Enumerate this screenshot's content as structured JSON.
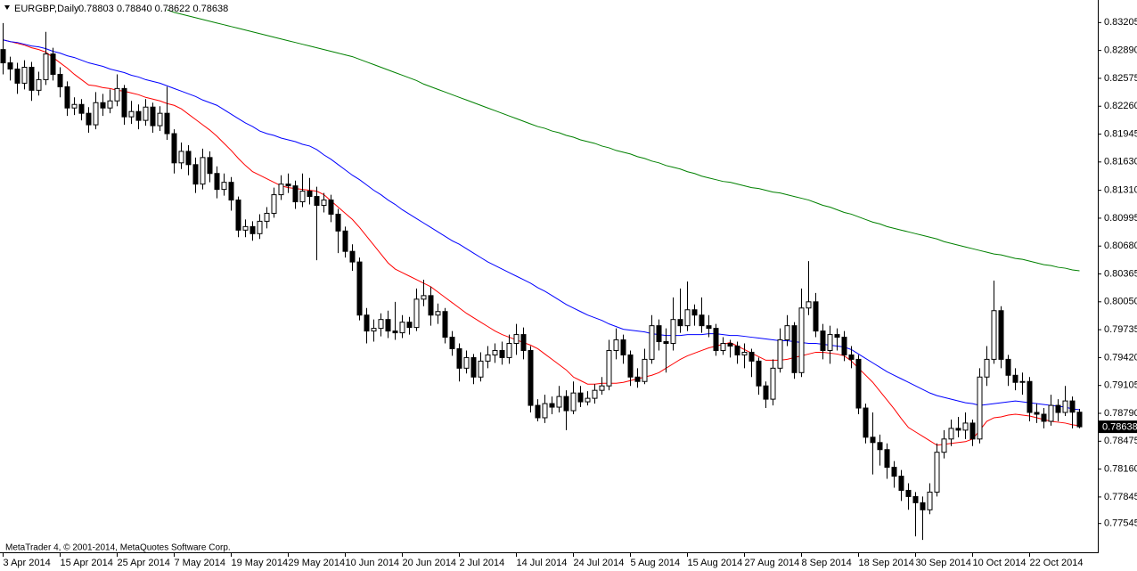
{
  "chart_data": {
    "type": "candlestick",
    "title": "EURGBP,Daily",
    "subtitle": "0.78803 0.78840 0.78622 0.78638",
    "footer": "MetaTrader 4, © 2001-2014, MetaQuotes Software Corp.",
    "categories": [
      "3 Apr 2014",
      null,
      null,
      null,
      null,
      null,
      null,
      null,
      "15 Apr 2014",
      null,
      null,
      null,
      null,
      null,
      null,
      null,
      "25 Apr 2014",
      null,
      null,
      null,
      null,
      null,
      null,
      null,
      "7 May 2014",
      null,
      null,
      null,
      null,
      null,
      null,
      null,
      "19 May 2014",
      null,
      null,
      null,
      null,
      null,
      null,
      null,
      "29 May 2014",
      null,
      null,
      null,
      null,
      null,
      null,
      null,
      "10 Jun 2014",
      null,
      null,
      null,
      null,
      null,
      null,
      null,
      "20 Jun 2014",
      null,
      null,
      null,
      null,
      null,
      null,
      null,
      "2 Jul 2014",
      null,
      null,
      null,
      null,
      null,
      null,
      null,
      "14 Jul 2014",
      null,
      null,
      null,
      null,
      null,
      null,
      null,
      "24 Jul 2014",
      null,
      null,
      null,
      null,
      null,
      null,
      null,
      "5 Aug 2014",
      null,
      null,
      null,
      null,
      null,
      null,
      null,
      "15 Aug 2014",
      null,
      null,
      null,
      null,
      null,
      null,
      null,
      "27 Aug 2014",
      null,
      null,
      null,
      null,
      null,
      null,
      null,
      "8 Sep 2014",
      null,
      null,
      null,
      null,
      null,
      null,
      null,
      "18 Sep 2014",
      null,
      null,
      null,
      null,
      null,
      null,
      null,
      "30 Sep 2014",
      null,
      null,
      null,
      null,
      null,
      null,
      null,
      "10 Oct 2014",
      null,
      null,
      null,
      null,
      null,
      null,
      null,
      "22 Oct 2014",
      null,
      null,
      null,
      null,
      null,
      null,
      null
    ],
    "open": [
      0.829,
      0.8275,
      0.8268,
      0.8252,
      0.827,
      0.8244,
      0.8256,
      0.8285,
      0.8262,
      0.8248,
      0.8224,
      0.8228,
      0.8218,
      0.8205,
      0.823,
      0.8224,
      0.8232,
      0.8246,
      0.8214,
      0.822,
      0.821,
      0.8225,
      0.8204,
      0.8218,
      0.8195,
      0.8162,
      0.8175,
      0.816,
      0.8138,
      0.8168,
      0.815,
      0.8132,
      0.814,
      0.812,
      0.8086,
      0.809,
      0.8082,
      0.8096,
      0.8105,
      0.8126,
      0.8138,
      0.8136,
      0.8118,
      0.813,
      0.8124,
      0.8114,
      0.812,
      0.8104,
      0.8085,
      0.8062,
      0.805,
      0.799,
      0.7972,
      0.7975,
      0.7985,
      0.7972,
      0.797,
      0.7982,
      0.7976,
      0.8008,
      0.8012,
      0.799,
      0.7994,
      0.7965,
      0.7952,
      0.793,
      0.7942,
      0.792,
      0.7938,
      0.7945,
      0.795,
      0.7942,
      0.7958,
      0.7968,
      0.795,
      0.7888,
      0.7874,
      0.789,
      0.7886,
      0.7898,
      0.7882,
      0.7902,
      0.7892,
      0.7896,
      0.7905,
      0.791,
      0.795,
      0.7962,
      0.7945,
      0.792,
      0.7915,
      0.794,
      0.7978,
      0.796,
      0.7958,
      0.7985,
      0.7978,
      0.7996,
      0.799,
      0.7978,
      0.7975,
      0.795,
      0.7958,
      0.7955,
      0.7945,
      0.7948,
      0.7938,
      0.791,
      0.7895,
      0.793,
      0.7962,
      0.7978,
      0.7925,
      0.7998,
      0.8005,
      0.7972,
      0.795,
      0.7968,
      0.7965,
      0.7945,
      0.794,
      0.7885,
      0.7852,
      0.7846,
      0.7838,
      0.7818,
      0.7808,
      0.7792,
      0.7785,
      0.7778,
      0.777,
      0.779,
      0.7835,
      0.785,
      0.7862,
      0.786,
      0.7868,
      0.785,
      0.792,
      0.794,
      0.7995,
      0.794,
      0.7922,
      0.7914,
      0.7915,
      0.788,
      0.7878,
      0.787,
      0.7888,
      0.788,
      0.7893,
      0.78803
    ],
    "high": [
      0.832,
      0.8282,
      0.8275,
      0.8278,
      0.8276,
      0.8265,
      0.831,
      0.8292,
      0.827,
      0.8254,
      0.8236,
      0.8234,
      0.8225,
      0.8242,
      0.824,
      0.8245,
      0.8262,
      0.825,
      0.8232,
      0.8228,
      0.8234,
      0.823,
      0.8226,
      0.8248,
      0.82,
      0.8185,
      0.8182,
      0.8168,
      0.8178,
      0.8175,
      0.8158,
      0.815,
      0.8146,
      0.8124,
      0.8098,
      0.8096,
      0.8104,
      0.8112,
      0.8134,
      0.8148,
      0.815,
      0.8142,
      0.815,
      0.8145,
      0.8135,
      0.8128,
      0.8126,
      0.811,
      0.809,
      0.807,
      0.8055,
      0.7998,
      0.7985,
      0.7992,
      0.7995,
      0.8005,
      0.799,
      0.7988,
      0.802,
      0.803,
      0.8022,
      0.8003,
      0.7998,
      0.7972,
      0.7958,
      0.795,
      0.7946,
      0.7948,
      0.7955,
      0.7958,
      0.796,
      0.7968,
      0.798,
      0.7976,
      0.7955,
      0.7895,
      0.79,
      0.7898,
      0.791,
      0.7905,
      0.7915,
      0.791,
      0.7904,
      0.7912,
      0.792,
      0.7962,
      0.7975,
      0.7968,
      0.795,
      0.793,
      0.7952,
      0.799,
      0.7985,
      0.7975,
      0.801,
      0.802,
      0.8028,
      0.8002,
      0.801,
      0.799,
      0.798,
      0.7965,
      0.7962,
      0.796,
      0.7958,
      0.7952,
      0.7942,
      0.7915,
      0.794,
      0.7975,
      0.799,
      0.7982,
      0.802,
      0.8051,
      0.8015,
      0.798,
      0.7978,
      0.7975,
      0.7972,
      0.7955,
      0.7945,
      0.789,
      0.788,
      0.7855,
      0.7845,
      0.7825,
      0.7815,
      0.78,
      0.779,
      0.7785,
      0.78,
      0.7845,
      0.786,
      0.7872,
      0.7875,
      0.788,
      0.7872,
      0.793,
      0.7955,
      0.8029,
      0.8,
      0.7945,
      0.793,
      0.7925,
      0.792,
      0.789,
      0.7885,
      0.79,
      0.7895,
      0.791,
      0.7898,
      0.7884
    ],
    "low": [
      0.8262,
      0.8255,
      0.824,
      0.8245,
      0.8232,
      0.8238,
      0.825,
      0.8255,
      0.8236,
      0.8215,
      0.8216,
      0.821,
      0.8196,
      0.82,
      0.8215,
      0.8218,
      0.8226,
      0.8205,
      0.8206,
      0.82,
      0.8204,
      0.8196,
      0.8198,
      0.8188,
      0.815,
      0.8155,
      0.8148,
      0.8128,
      0.8132,
      0.814,
      0.8122,
      0.8125,
      0.8108,
      0.8078,
      0.8078,
      0.8074,
      0.8076,
      0.8088,
      0.81,
      0.812,
      0.8128,
      0.811,
      0.8112,
      0.8115,
      0.8052,
      0.8106,
      0.8095,
      0.806,
      0.8055,
      0.804,
      0.7984,
      0.7958,
      0.796,
      0.7966,
      0.7964,
      0.7962,
      0.7964,
      0.7968,
      0.7972,
      0.8,
      0.7978,
      0.798,
      0.7958,
      0.7944,
      0.7915,
      0.7924,
      0.7912,
      0.7915,
      0.793,
      0.7936,
      0.7934,
      0.7935,
      0.7945,
      0.794,
      0.788,
      0.787,
      0.7868,
      0.7878,
      0.788,
      0.786,
      0.7878,
      0.7886,
      0.7888,
      0.789,
      0.79,
      0.7905,
      0.794,
      0.7935,
      0.791,
      0.7908,
      0.7912,
      0.7935,
      0.795,
      0.7925,
      0.795,
      0.797,
      0.7972,
      0.7978,
      0.797,
      0.7965,
      0.7944,
      0.7945,
      0.7942,
      0.7935,
      0.793,
      0.792,
      0.79,
      0.7885,
      0.7888,
      0.7925,
      0.7955,
      0.7918,
      0.792,
      0.799,
      0.7965,
      0.794,
      0.7935,
      0.795,
      0.7938,
      0.793,
      0.7878,
      0.7845,
      0.781,
      0.782,
      0.7805,
      0.7795,
      0.778,
      0.777,
      0.774,
      0.7736,
      0.7765,
      0.7785,
      0.7828,
      0.7842,
      0.7852,
      0.785,
      0.7842,
      0.7845,
      0.791,
      0.7935,
      0.793,
      0.791,
      0.7905,
      0.79,
      0.787,
      0.7868,
      0.7862,
      0.7865,
      0.787,
      0.7876,
      0.7862,
      0.78622
    ],
    "close": [
      0.8275,
      0.8268,
      0.8252,
      0.827,
      0.8244,
      0.8256,
      0.8285,
      0.8262,
      0.8248,
      0.8224,
      0.8228,
      0.8218,
      0.8205,
      0.823,
      0.8224,
      0.8232,
      0.8246,
      0.8214,
      0.822,
      0.821,
      0.8225,
      0.8204,
      0.8218,
      0.8195,
      0.8162,
      0.8175,
      0.816,
      0.8138,
      0.8168,
      0.815,
      0.8132,
      0.814,
      0.812,
      0.8086,
      0.809,
      0.8082,
      0.8096,
      0.8105,
      0.8126,
      0.8138,
      0.8136,
      0.8118,
      0.813,
      0.8124,
      0.8114,
      0.812,
      0.8104,
      0.8085,
      0.8062,
      0.805,
      0.799,
      0.7972,
      0.7975,
      0.7985,
      0.7972,
      0.797,
      0.7982,
      0.7976,
      0.8008,
      0.8012,
      0.799,
      0.7994,
      0.7965,
      0.7952,
      0.793,
      0.7942,
      0.792,
      0.7938,
      0.7945,
      0.795,
      0.7942,
      0.7958,
      0.7968,
      0.795,
      0.7888,
      0.7874,
      0.789,
      0.7886,
      0.7898,
      0.7882,
      0.7902,
      0.7892,
      0.7896,
      0.7905,
      0.791,
      0.795,
      0.7962,
      0.7945,
      0.792,
      0.7915,
      0.794,
      0.7978,
      0.796,
      0.7958,
      0.7985,
      0.7978,
      0.7996,
      0.799,
      0.7978,
      0.7975,
      0.795,
      0.7958,
      0.7955,
      0.7945,
      0.7948,
      0.7938,
      0.791,
      0.7895,
      0.793,
      0.7962,
      0.7978,
      0.7925,
      0.7998,
      0.8005,
      0.7972,
      0.795,
      0.7968,
      0.7965,
      0.7945,
      0.794,
      0.7885,
      0.7852,
      0.7846,
      0.7838,
      0.7818,
      0.7808,
      0.7792,
      0.7785,
      0.7778,
      0.777,
      0.779,
      0.7835,
      0.785,
      0.7862,
      0.786,
      0.7868,
      0.785,
      0.792,
      0.794,
      0.7995,
      0.794,
      0.7922,
      0.7914,
      0.7915,
      0.788,
      0.7878,
      0.787,
      0.7888,
      0.788,
      0.7893,
      0.78803,
      0.78638
    ],
    "up_color": "#ffffff",
    "down_color": "#000000",
    "overlays": [
      {
        "color": "#ff0000",
        "values": [
          0.8301,
          0.8299,
          0.8297,
          0.8295,
          0.8292,
          0.829,
          0.8287,
          0.8281,
          0.8275,
          0.8269,
          0.8262,
          0.8256,
          0.825,
          0.8249,
          0.8247,
          0.8246,
          0.8244,
          0.8243,
          0.8241,
          0.8239,
          0.8236,
          0.8234,
          0.8232,
          0.8229,
          0.8227,
          0.8223,
          0.8217,
          0.8211,
          0.8205,
          0.8199,
          0.8192,
          0.8184,
          0.8176,
          0.8167,
          0.8159,
          0.8152,
          0.8148,
          0.8144,
          0.814,
          0.8136,
          0.8134,
          0.8133,
          0.8132,
          0.8131,
          0.813,
          0.8126,
          0.8119,
          0.8112,
          0.8105,
          0.8098,
          0.8089,
          0.8079,
          0.8069,
          0.8059,
          0.8049,
          0.8042,
          0.8038,
          0.8034,
          0.803,
          0.8026,
          0.8022,
          0.8016,
          0.801,
          0.8004,
          0.7998,
          0.7992,
          0.7987,
          0.7982,
          0.7977,
          0.7972,
          0.7968,
          0.7965,
          0.7962,
          0.7959,
          0.7956,
          0.7952,
          0.7946,
          0.794,
          0.7934,
          0.7928,
          0.792,
          0.7916,
          0.7912,
          0.7912,
          0.7913,
          0.7913,
          0.7913,
          0.7914,
          0.7916,
          0.7918,
          0.792,
          0.7922,
          0.7925,
          0.793,
          0.7935,
          0.794,
          0.7944,
          0.7947,
          0.795,
          0.7953,
          0.7955,
          0.7957,
          0.7959,
          0.7955,
          0.7951,
          0.7947,
          0.7943,
          0.7939,
          0.7939,
          0.7939,
          0.794,
          0.7942,
          0.7944,
          0.7946,
          0.7948,
          0.7948,
          0.7947,
          0.7946,
          0.7944,
          0.7938,
          0.793,
          0.7922,
          0.7914,
          0.7904,
          0.7894,
          0.7884,
          0.7873,
          0.7863,
          0.7858,
          0.7853,
          0.7848,
          0.7843,
          0.7844,
          0.7845,
          0.7846,
          0.7847,
          0.785,
          0.786,
          0.787,
          0.7874,
          0.7875,
          0.7877,
          0.7878,
          0.7877,
          0.7876,
          0.7874,
          0.7872,
          0.787,
          0.7869,
          0.7868,
          0.7866,
          0.7865
        ]
      },
      {
        "color": "#0000ff",
        "values": [
          0.8301,
          0.8299,
          0.8298,
          0.8296,
          0.8294,
          0.8293,
          0.8291,
          0.8288,
          0.8286,
          0.8283,
          0.8281,
          0.8278,
          0.8275,
          0.8273,
          0.8271,
          0.8268,
          0.8266,
          0.8264,
          0.8261,
          0.8259,
          0.8256,
          0.8254,
          0.8252,
          0.8249,
          0.8246,
          0.8243,
          0.824,
          0.8237,
          0.8233,
          0.823,
          0.8227,
          0.8222,
          0.8217,
          0.8212,
          0.8207,
          0.8203,
          0.8198,
          0.8195,
          0.8193,
          0.819,
          0.8188,
          0.8186,
          0.8183,
          0.8181,
          0.8177,
          0.8171,
          0.8166,
          0.816,
          0.8154,
          0.8148,
          0.8143,
          0.8137,
          0.8131,
          0.8126,
          0.812,
          0.8115,
          0.8109,
          0.8104,
          0.8099,
          0.8094,
          0.8089,
          0.8084,
          0.8079,
          0.8074,
          0.807,
          0.8065,
          0.806,
          0.8055,
          0.805,
          0.8046,
          0.8042,
          0.8038,
          0.8034,
          0.803,
          0.8026,
          0.8021,
          0.8017,
          0.8012,
          0.8007,
          0.8002,
          0.7998,
          0.7994,
          0.799,
          0.7987,
          0.7984,
          0.798,
          0.7977,
          0.7974,
          0.7973,
          0.7972,
          0.7971,
          0.7969,
          0.7968,
          0.7967,
          0.7967,
          0.7967,
          0.7968,
          0.7968,
          0.7968,
          0.7969,
          0.7969,
          0.7968,
          0.7967,
          0.7967,
          0.7966,
          0.7965,
          0.7964,
          0.7963,
          0.7962,
          0.7961,
          0.7961,
          0.796,
          0.7959,
          0.7958,
          0.7958,
          0.7957,
          0.7956,
          0.7955,
          0.7954,
          0.7951,
          0.7946,
          0.7941,
          0.7936,
          0.7931,
          0.7926,
          0.7922,
          0.7918,
          0.7914,
          0.791,
          0.7906,
          0.7902,
          0.7899,
          0.7897,
          0.7895,
          0.7893,
          0.7891,
          0.789,
          0.7888,
          0.7889,
          0.789,
          0.7891,
          0.7892,
          0.7893,
          0.7892,
          0.7891,
          0.789,
          0.7889,
          0.7888,
          0.7887,
          0.7886,
          0.7884,
          0.7883
        ]
      },
      {
        "color": "#008000",
        "values": [
          null,
          null,
          null,
          null,
          null,
          null,
          null,
          null,
          null,
          null,
          null,
          null,
          null,
          null,
          null,
          null,
          null,
          null,
          null,
          null,
          null,
          null,
          null,
          0.8335,
          0.8332,
          0.833,
          0.8328,
          0.8326,
          0.8324,
          0.8322,
          0.832,
          0.8318,
          0.8316,
          0.8314,
          0.8312,
          0.831,
          0.8308,
          0.8306,
          0.8304,
          0.8302,
          0.83,
          0.8298,
          0.8296,
          0.8294,
          0.8292,
          0.829,
          0.8288,
          0.8286,
          0.8284,
          0.8282,
          0.8279,
          0.8276,
          0.8273,
          0.827,
          0.8267,
          0.8264,
          0.8261,
          0.8258,
          0.8255,
          0.8251,
          0.8248,
          0.8245,
          0.8242,
          0.8239,
          0.8236,
          0.8233,
          0.823,
          0.8227,
          0.8224,
          0.8221,
          0.8218,
          0.8215,
          0.8212,
          0.8209,
          0.8206,
          0.8203,
          0.8201,
          0.8198,
          0.8196,
          0.8193,
          0.8191,
          0.8188,
          0.8186,
          0.8184,
          0.8181,
          0.8179,
          0.8176,
          0.8174,
          0.8172,
          0.8169,
          0.8167,
          0.8164,
          0.8162,
          0.8159,
          0.8157,
          0.8155,
          0.8152,
          0.815,
          0.8147,
          0.8145,
          0.8143,
          0.8141,
          0.814,
          0.8138,
          0.8136,
          0.8134,
          0.8133,
          0.8131,
          0.8129,
          0.8128,
          0.8126,
          0.8124,
          0.8122,
          0.812,
          0.8117,
          0.8114,
          0.8112,
          0.8109,
          0.8106,
          0.8104,
          0.8101,
          0.8098,
          0.8095,
          0.8093,
          0.809,
          0.8088,
          0.8086,
          0.8084,
          0.8082,
          0.808,
          0.8078,
          0.8076,
          0.8073,
          0.8071,
          0.8069,
          0.8067,
          0.8065,
          0.8063,
          0.8061,
          0.8059,
          0.8058,
          0.8056,
          0.8054,
          0.8053,
          0.8051,
          0.8049,
          0.8047,
          0.8046,
          0.8044,
          0.8043,
          0.8041,
          0.804
        ]
      }
    ],
    "ylim": [
      0.7722,
      0.8346
    ],
    "yticks": [
      0.83205,
      {
        "value": 0.8289,
        "label": "0.82890"
      },
      0.82575,
      {
        "value": 0.8226,
        "label": "0.82260"
      },
      0.81945,
      {
        "value": 0.8163,
        "label": "0.81630"
      },
      {
        "value": 0.8131,
        "label": "0.81310"
      },
      0.80995,
      {
        "value": 0.8068,
        "label": "0.80680"
      },
      0.80365,
      {
        "value": 0.8005,
        "label": "0.80050"
      },
      0.79735,
      {
        "value": 0.7942,
        "label": "0.79420"
      },
      0.79105,
      {
        "value": 0.7879,
        "label": "0.78790"
      },
      0.78475,
      {
        "value": 0.7816,
        "label": "0.78160"
      },
      0.77845,
      0.77545
    ]
  }
}
